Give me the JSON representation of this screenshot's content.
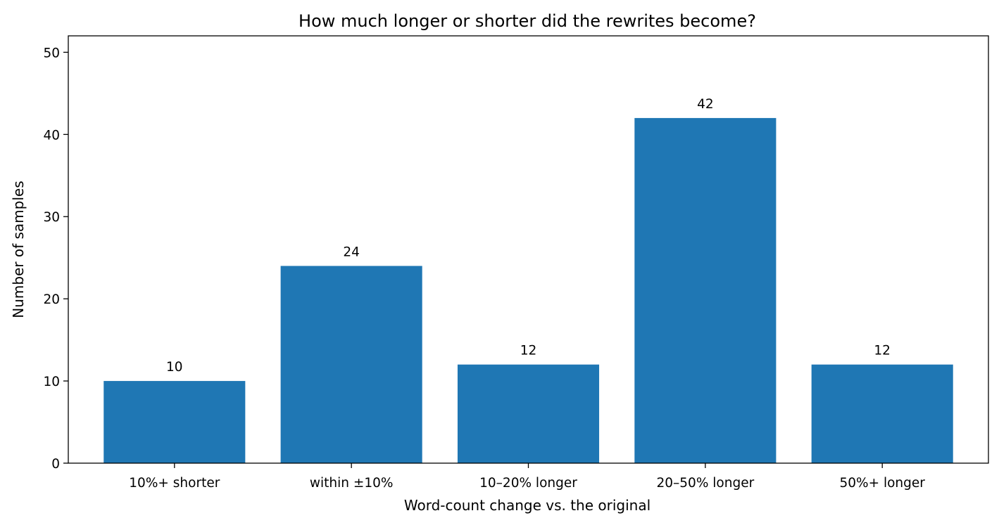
{
  "chart_data": {
    "type": "bar",
    "title": "How much longer or shorter did the rewrites become?",
    "xlabel": "Word-count change vs. the original",
    "ylabel": "Number of samples",
    "categories": [
      "10%+ shorter",
      "within ±10%",
      "10–20% longer",
      "20–50% longer",
      "50%+ longer"
    ],
    "values": [
      10,
      24,
      12,
      42,
      12
    ],
    "data_labels": [
      "10",
      "24",
      "12",
      "42",
      "12"
    ],
    "ylim": [
      0,
      52
    ],
    "yticks": [
      0,
      10,
      20,
      30,
      40,
      50
    ],
    "ytick_labels": [
      "0",
      "10",
      "20",
      "30",
      "40",
      "50"
    ],
    "bar_color": "#1f77b4",
    "grid": false,
    "legend": "none"
  }
}
